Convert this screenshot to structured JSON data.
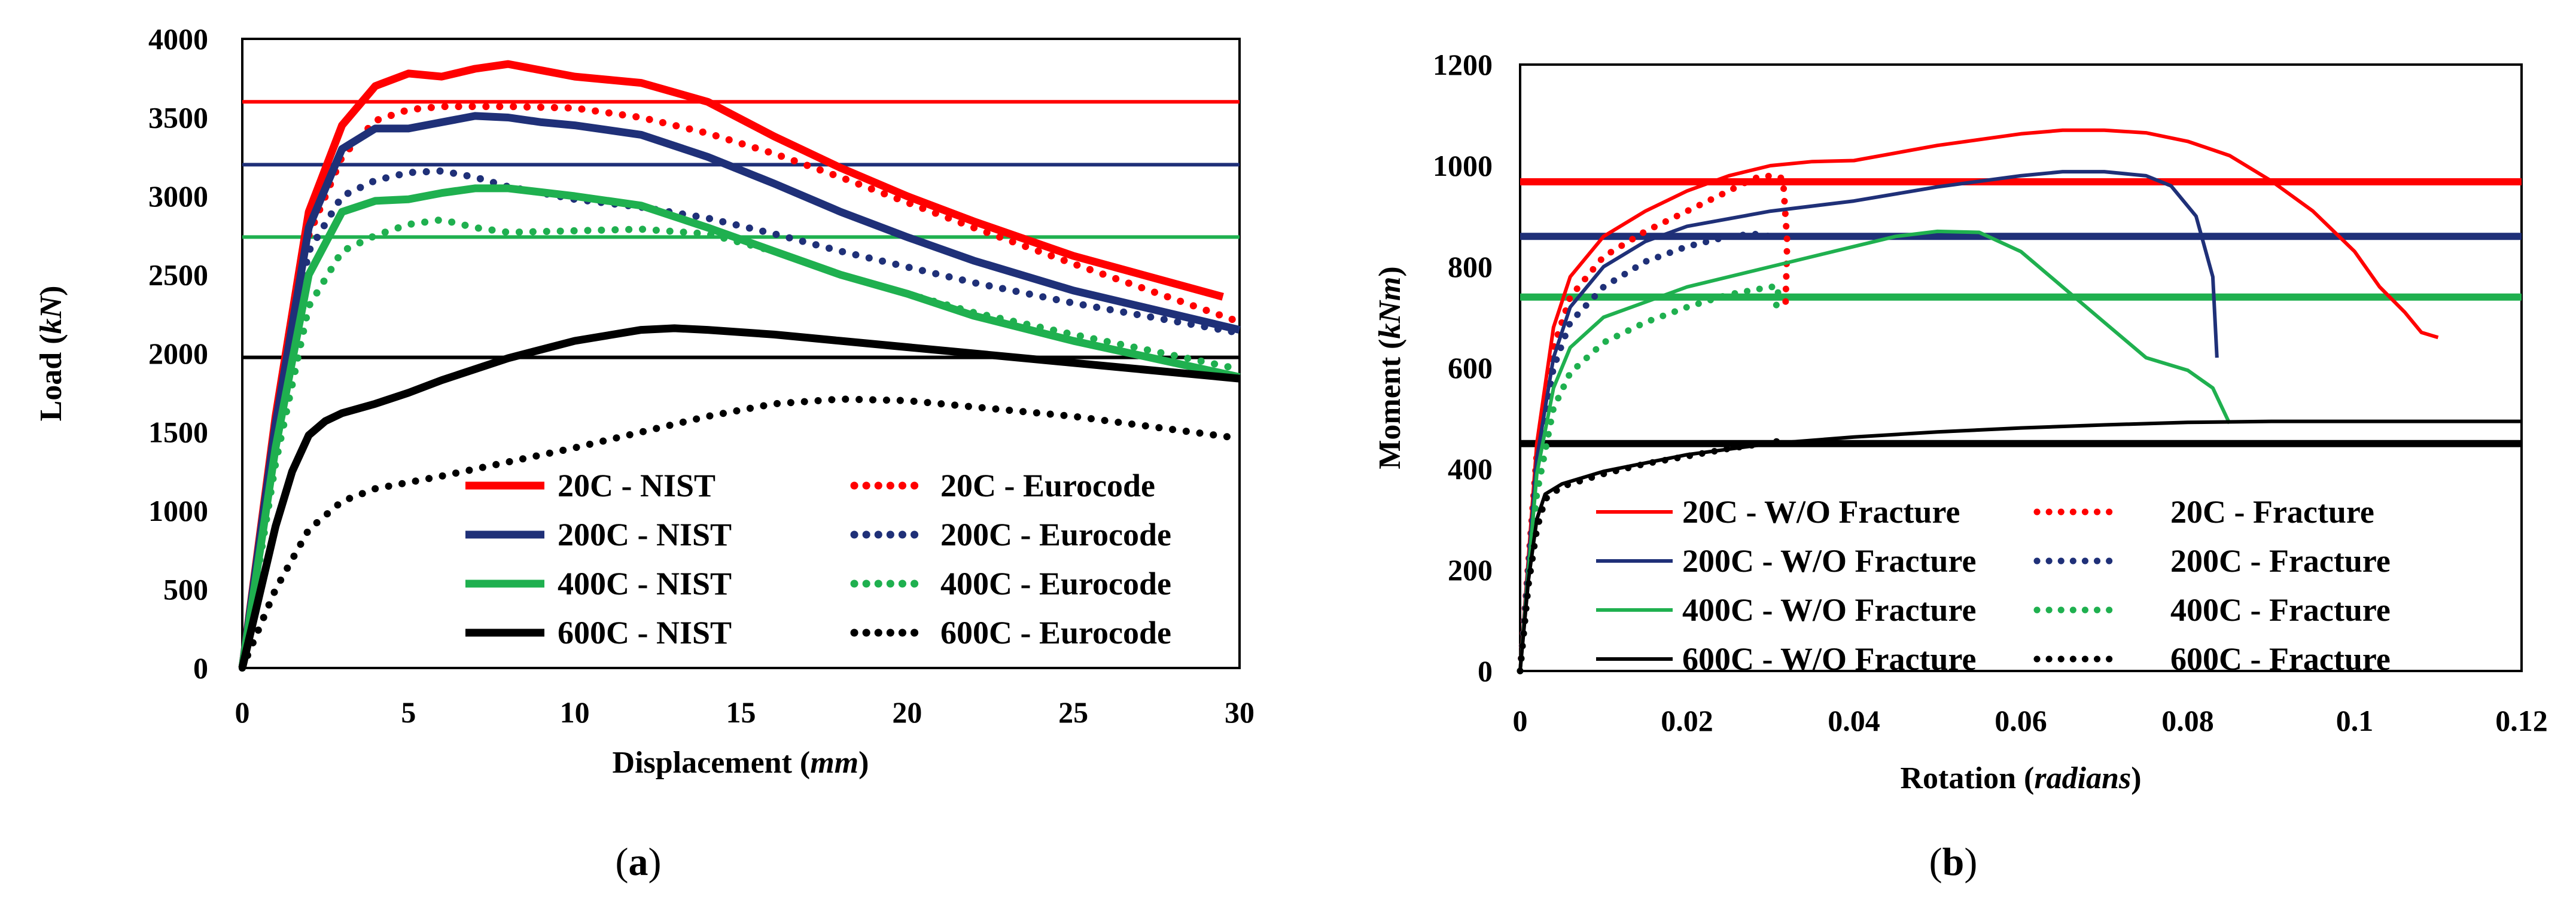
{
  "chart_data": [
    {
      "type": "line",
      "panel_label": "(a)",
      "panel_letter": "a",
      "xlabel_main": "Displacement (",
      "xlabel_unit": "mm",
      "xlabel_close": ")",
      "ylabel_main": "Load (",
      "ylabel_unit": "kN",
      "ylabel_close": ")",
      "xlim": [
        0,
        30
      ],
      "ylim": [
        0,
        4000
      ],
      "xticks": [
        0,
        5,
        10,
        15,
        20,
        25,
        30
      ],
      "yticks": [
        0,
        500,
        1000,
        1500,
        2000,
        2500,
        3000,
        3500,
        4000
      ],
      "hlines": [
        {
          "y": 3600,
          "color": "#ff0000"
        },
        {
          "y": 3200,
          "color": "#1f3078"
        },
        {
          "y": 2740,
          "color": "#1fb04f"
        },
        {
          "y": 1975,
          "color": "#000000"
        }
      ],
      "series": [
        {
          "name": "20C - NIST",
          "color": "#ff0000",
          "dash": "solid",
          "width": 13,
          "x": [
            0,
            1,
            2,
            3,
            4,
            5,
            6,
            7,
            8,
            9,
            10,
            12,
            14,
            16,
            18,
            20,
            22,
            25,
            29.5
          ],
          "y": [
            0,
            1600,
            2900,
            3450,
            3700,
            3780,
            3760,
            3810,
            3840,
            3800,
            3760,
            3720,
            3600,
            3380,
            3180,
            3000,
            2840,
            2620,
            2360
          ]
        },
        {
          "name": "20C - Eurocode",
          "color": "#ff0000",
          "dash": "dot",
          "width": 12,
          "x": [
            0,
            1,
            2,
            3,
            4,
            5,
            6,
            8,
            10,
            12,
            14,
            16,
            18,
            20,
            22,
            25,
            30
          ],
          "y": [
            0,
            1550,
            2750,
            3250,
            3480,
            3550,
            3570,
            3570,
            3560,
            3500,
            3400,
            3270,
            3120,
            2960,
            2800,
            2570,
            2200
          ]
        },
        {
          "name": "200C - NIST",
          "color": "#1f3078",
          "dash": "solid",
          "width": 13,
          "x": [
            0,
            1,
            2,
            3,
            4,
            5,
            6,
            7,
            8,
            9,
            10,
            12,
            14,
            16,
            18,
            20,
            22,
            25,
            30
          ],
          "y": [
            0,
            1550,
            2800,
            3300,
            3430,
            3430,
            3470,
            3510,
            3500,
            3470,
            3450,
            3390,
            3250,
            3080,
            2900,
            2740,
            2590,
            2400,
            2150
          ]
        },
        {
          "name": "200C - Eurocode",
          "color": "#1f3078",
          "dash": "dot",
          "width": 12,
          "x": [
            0,
            1,
            2,
            3,
            4,
            5,
            6,
            7,
            8,
            10,
            12,
            14,
            16,
            18,
            20,
            22,
            25,
            30
          ],
          "y": [
            0,
            1500,
            2650,
            3000,
            3100,
            3150,
            3160,
            3120,
            3060,
            2980,
            2930,
            2860,
            2760,
            2650,
            2550,
            2450,
            2320,
            2130
          ]
        },
        {
          "name": "400C - NIST",
          "color": "#1fb04f",
          "dash": "solid",
          "width": 13,
          "x": [
            0,
            1,
            2,
            3,
            4,
            5,
            6,
            7,
            8,
            10,
            12,
            14,
            16,
            18,
            20,
            22,
            25,
            30
          ],
          "y": [
            0,
            1400,
            2500,
            2900,
            2970,
            2980,
            3020,
            3050,
            3050,
            3000,
            2940,
            2800,
            2650,
            2500,
            2380,
            2240,
            2080,
            1850
          ]
        },
        {
          "name": "400C - Eurocode",
          "color": "#1fb04f",
          "dash": "dot",
          "width": 12,
          "x": [
            0,
            1,
            2,
            3,
            4,
            5,
            6,
            7,
            8,
            10,
            12,
            14,
            16,
            18,
            20,
            22,
            25,
            30
          ],
          "y": [
            0,
            1300,
            2300,
            2650,
            2750,
            2820,
            2850,
            2800,
            2770,
            2780,
            2790,
            2760,
            2650,
            2500,
            2380,
            2260,
            2120,
            1900
          ]
        },
        {
          "name": "600C - NIST",
          "color": "#000000",
          "dash": "solid",
          "width": 13,
          "x": [
            0,
            0.5,
            1,
            1.5,
            2,
            2.5,
            3,
            4,
            5,
            6,
            8,
            10,
            12,
            13,
            14,
            16,
            18,
            20,
            22,
            25,
            30
          ],
          "y": [
            0,
            450,
            900,
            1250,
            1480,
            1570,
            1620,
            1680,
            1750,
            1830,
            1970,
            2080,
            2150,
            2160,
            2150,
            2120,
            2080,
            2040,
            2000,
            1940,
            1840
          ]
        },
        {
          "name": "600C - Eurocode",
          "color": "#000000",
          "dash": "dot",
          "width": 12,
          "x": [
            0,
            1,
            2,
            3,
            4,
            5,
            6,
            8,
            10,
            12,
            14,
            16,
            18,
            20,
            22,
            25,
            30
          ],
          "y": [
            0,
            500,
            880,
            1060,
            1140,
            1180,
            1220,
            1310,
            1400,
            1500,
            1600,
            1680,
            1710,
            1700,
            1660,
            1600,
            1460
          ]
        }
      ],
      "legend": {
        "left": [
          "20C - NIST",
          "200C - NIST",
          "400C - NIST",
          "600C - NIST"
        ],
        "right": [
          "20C - Eurocode",
          "200C - Eurocode",
          "400C - Eurocode",
          "600C - Eurocode"
        ]
      }
    },
    {
      "type": "line",
      "panel_label": "(b)",
      "panel_letter": "b",
      "xlabel_main": "Rotation (",
      "xlabel_unit": "radians",
      "xlabel_close": ")",
      "ylabel_main": "Moment (",
      "ylabel_unit": "kNm",
      "ylabel_close": ")",
      "xlim": [
        0,
        0.12
      ],
      "ylim": [
        0,
        1200
      ],
      "xticks": [
        0,
        0.02,
        0.04,
        0.06,
        0.08,
        0.1,
        0.12
      ],
      "xtick_labels": [
        "0",
        "0.02",
        "0.04",
        "0.06",
        "0.08",
        "0.1",
        "0.12"
      ],
      "yticks": [
        0,
        200,
        400,
        600,
        800,
        1000,
        1200
      ],
      "hlines": [
        {
          "y": 968,
          "color": "#ff0000"
        },
        {
          "y": 860,
          "color": "#1f3078"
        },
        {
          "y": 740,
          "color": "#1fb04f"
        },
        {
          "y": 450,
          "color": "#000000"
        }
      ],
      "series": [
        {
          "name": "20C - W/O Fracture",
          "color": "#ff0000",
          "dash": "solid",
          "width": 6,
          "x": [
            0,
            0.002,
            0.004,
            0.006,
            0.01,
            0.015,
            0.02,
            0.025,
            0.03,
            0.035,
            0.04,
            0.05,
            0.06,
            0.065,
            0.07,
            0.075,
            0.08,
            0.085,
            0.09,
            0.095,
            0.1,
            0.103,
            0.106,
            0.108,
            0.11
          ],
          "y": [
            0,
            450,
            680,
            780,
            860,
            910,
            950,
            980,
            1000,
            1008,
            1010,
            1040,
            1063,
            1070,
            1070,
            1065,
            1048,
            1020,
            970,
            910,
            830,
            760,
            710,
            670,
            660
          ]
        },
        {
          "name": "20C - Fracture",
          "color": "#ff0000",
          "dash": "dot",
          "width": 11,
          "x": [
            0,
            0.002,
            0.004,
            0.006,
            0.01,
            0.015,
            0.02,
            0.025,
            0.028,
            0.03,
            0.0315,
            0.032,
            0.0318
          ],
          "y": [
            0,
            430,
            640,
            740,
            820,
            870,
            910,
            950,
            975,
            980,
            975,
            850,
            720
          ]
        },
        {
          "name": "200C - W/O Fracture",
          "color": "#1f3078",
          "dash": "solid",
          "width": 6,
          "x": [
            0,
            0.002,
            0.004,
            0.006,
            0.01,
            0.015,
            0.02,
            0.03,
            0.04,
            0.05,
            0.06,
            0.065,
            0.07,
            0.075,
            0.078,
            0.081,
            0.083,
            0.0835
          ],
          "y": [
            0,
            420,
            620,
            720,
            800,
            850,
            880,
            910,
            930,
            958,
            980,
            988,
            988,
            980,
            960,
            900,
            780,
            620
          ]
        },
        {
          "name": "200C - Fracture",
          "color": "#1f3078",
          "dash": "dot",
          "width": 11,
          "x": [
            0,
            0.002,
            0.004,
            0.006,
            0.01,
            0.015,
            0.02,
            0.025,
            0.028,
            0.03
          ],
          "y": [
            0,
            400,
            600,
            690,
            760,
            810,
            840,
            860,
            865,
            860
          ]
        },
        {
          "name": "400C - W/O Fracture",
          "color": "#1fb04f",
          "dash": "solid",
          "width": 6,
          "x": [
            0,
            0.002,
            0.004,
            0.006,
            0.01,
            0.015,
            0.02,
            0.03,
            0.04,
            0.045,
            0.05,
            0.055,
            0.06,
            0.065,
            0.07,
            0.075,
            0.08,
            0.083,
            0.085
          ],
          "y": [
            0,
            390,
            560,
            640,
            700,
            730,
            760,
            800,
            840,
            860,
            870,
            868,
            830,
            760,
            690,
            620,
            595,
            560,
            490
          ]
        },
        {
          "name": "400C - Fracture",
          "color": "#1fb04f",
          "dash": "dot",
          "width": 11,
          "x": [
            0,
            0.002,
            0.004,
            0.006,
            0.01,
            0.015,
            0.02,
            0.025,
            0.03,
            0.031,
            0.0305
          ],
          "y": [
            0,
            350,
            520,
            590,
            650,
            690,
            720,
            745,
            760,
            760,
            700
          ]
        },
        {
          "name": "600C - W/O Fracture",
          "color": "#000000",
          "dash": "solid",
          "width": 6,
          "x": [
            0,
            0.001,
            0.002,
            0.003,
            0.005,
            0.01,
            0.02,
            0.03,
            0.04,
            0.05,
            0.06,
            0.07,
            0.08,
            0.09,
            0.1,
            0.11,
            0.12
          ],
          "y": [
            0,
            180,
            300,
            350,
            370,
            395,
            428,
            450,
            463,
            473,
            481,
            487,
            492,
            494,
            494,
            494,
            494
          ]
        },
        {
          "name": "600C - Fracture",
          "color": "#000000",
          "dash": "dot",
          "width": 11,
          "x": [
            0,
            0.001,
            0.002,
            0.003,
            0.005,
            0.01,
            0.015,
            0.02,
            0.025,
            0.03,
            0.031
          ],
          "y": [
            0,
            170,
            280,
            340,
            365,
            390,
            410,
            425,
            440,
            452,
            455
          ]
        }
      ],
      "legend": {
        "left": [
          "20C - W/O Fracture",
          "200C - W/O Fracture",
          "400C - W/O Fracture",
          "600C - W/O Fracture"
        ],
        "right": [
          "20C - Fracture",
          "200C - Fracture",
          "400C - Fracture",
          "600C - Fracture"
        ]
      }
    }
  ]
}
